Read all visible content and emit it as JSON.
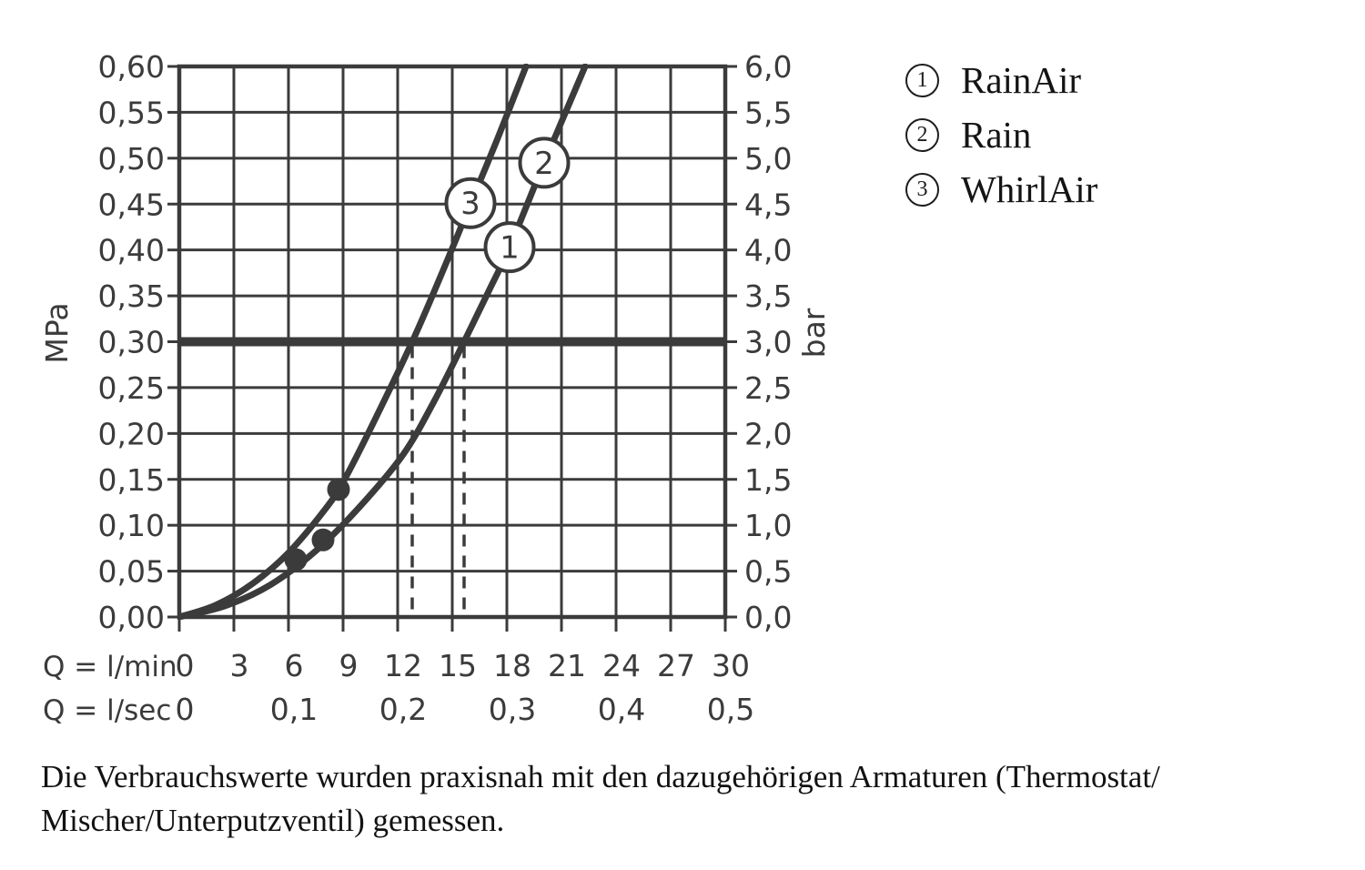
{
  "colors": {
    "ink": "#3b3b3b",
    "text": "#141414",
    "background": "#ffffff",
    "badge_fill": "#ffffff"
  },
  "legend": {
    "items": [
      {
        "num": "1",
        "label": "RainAir"
      },
      {
        "num": "2",
        "label": "Rain"
      },
      {
        "num": "3",
        "label": "WhirlAir"
      }
    ]
  },
  "caption": {
    "line1": "Die Verbrauchswerte wurden praxisnah mit den dazugehörigen Armaturen (Thermostat/",
    "line2": "Mischer/Unterputzventil) gemessen."
  },
  "chart_data": {
    "type": "line",
    "title": "",
    "grid": true,
    "x_axis": {
      "row1_label": "Q = l/min",
      "row2_label": "Q = l/sec",
      "range_lmin": [
        0,
        30
      ],
      "lmin_ticks": [
        {
          "q": 0,
          "label": "0"
        },
        {
          "q": 3,
          "label": "3"
        },
        {
          "q": 6,
          "label": "6"
        },
        {
          "q": 9,
          "label": "9"
        },
        {
          "q": 12,
          "label": "12"
        },
        {
          "q": 15,
          "label": "15"
        },
        {
          "q": 18,
          "label": "18"
        },
        {
          "q": 21,
          "label": "21"
        },
        {
          "q": 24,
          "label": "24"
        },
        {
          "q": 27,
          "label": "27"
        },
        {
          "q": 30,
          "label": "30"
        }
      ],
      "lsec_ticks": [
        {
          "q": 0,
          "label": "0"
        },
        {
          "q": 6,
          "label": "0,1"
        },
        {
          "q": 12,
          "label": "0,2"
        },
        {
          "q": 18,
          "label": "0,3"
        },
        {
          "q": 24,
          "label": "0,4"
        },
        {
          "q": 30,
          "label": "0,5"
        }
      ]
    },
    "y_left": {
      "unit": "MPa",
      "range": [
        0,
        0.6
      ],
      "ticks": [
        {
          "p": 0.6,
          "label": "0,60"
        },
        {
          "p": 0.55,
          "label": "0,55"
        },
        {
          "p": 0.5,
          "label": "0,50"
        },
        {
          "p": 0.45,
          "label": "0,45"
        },
        {
          "p": 0.4,
          "label": "0,40"
        },
        {
          "p": 0.35,
          "label": "0,35"
        },
        {
          "p": 0.3,
          "label": "0,30"
        },
        {
          "p": 0.25,
          "label": "0,25"
        },
        {
          "p": 0.2,
          "label": "0,20"
        },
        {
          "p": 0.15,
          "label": "0,15"
        },
        {
          "p": 0.1,
          "label": "0,10"
        },
        {
          "p": 0.05,
          "label": "0,05"
        },
        {
          "p": 0.0,
          "label": "0,00"
        }
      ]
    },
    "y_right": {
      "unit": "bar",
      "range": [
        0,
        6.0
      ],
      "ticks": [
        {
          "p": 0.6,
          "label": "6,0"
        },
        {
          "p": 0.55,
          "label": "5,5"
        },
        {
          "p": 0.5,
          "label": "5,0"
        },
        {
          "p": 0.45,
          "label": "4,5"
        },
        {
          "p": 0.4,
          "label": "4,0"
        },
        {
          "p": 0.35,
          "label": "3,5"
        },
        {
          "p": 0.3,
          "label": "3,0"
        },
        {
          "p": 0.25,
          "label": "2,5"
        },
        {
          "p": 0.2,
          "label": "2,0"
        },
        {
          "p": 0.15,
          "label": "1,5"
        },
        {
          "p": 0.1,
          "label": "1,0"
        },
        {
          "p": 0.05,
          "label": "0,5"
        },
        {
          "p": 0.0,
          "label": "0,0"
        }
      ]
    },
    "reference_line": {
      "mpa": 0.3,
      "bar": 3.0
    },
    "dashed_guides_lmin": [
      12.8,
      15.65
    ],
    "series": [
      {
        "id": "1",
        "name": "RainAir",
        "curve": "B",
        "badge_at": {
          "q": 18.15,
          "p": 0.403
        }
      },
      {
        "id": "2",
        "name": "Rain",
        "curve": "B",
        "badge_at": {
          "q": 20.05,
          "p": 0.495
        }
      },
      {
        "id": "3",
        "name": "WhirlAir",
        "curve": "A",
        "badge_at": {
          "q": 16.0,
          "p": 0.451
        }
      }
    ],
    "curves": {
      "A": {
        "series_ids": [
          "3"
        ],
        "points_q_mpa": [
          [
            0,
            0
          ],
          [
            2,
            0.013
          ],
          [
            4,
            0.036
          ],
          [
            6,
            0.07
          ],
          [
            8,
            0.117
          ],
          [
            9,
            0.147
          ],
          [
            10.5,
            0.205
          ],
          [
            12.8,
            0.3
          ],
          [
            14.5,
            0.378
          ],
          [
            16,
            0.45
          ],
          [
            17.5,
            0.522
          ],
          [
            19.05,
            0.6
          ]
        ]
      },
      "B": {
        "series_ids": [
          "1",
          "2"
        ],
        "points_q_mpa": [
          [
            0,
            0
          ],
          [
            2.5,
            0.012
          ],
          [
            5,
            0.035
          ],
          [
            7.5,
            0.072
          ],
          [
            10,
            0.122
          ],
          [
            12.3,
            0.177
          ],
          [
            14,
            0.235
          ],
          [
            15.65,
            0.3
          ],
          [
            17,
            0.355
          ],
          [
            18.15,
            0.403
          ],
          [
            20.05,
            0.495
          ],
          [
            22.3,
            0.6
          ]
        ]
      }
    },
    "measured_dots_q_mpa": [
      [
        8.75,
        0.139
      ],
      [
        7.9,
        0.084
      ],
      [
        6.4,
        0.0625
      ]
    ]
  }
}
